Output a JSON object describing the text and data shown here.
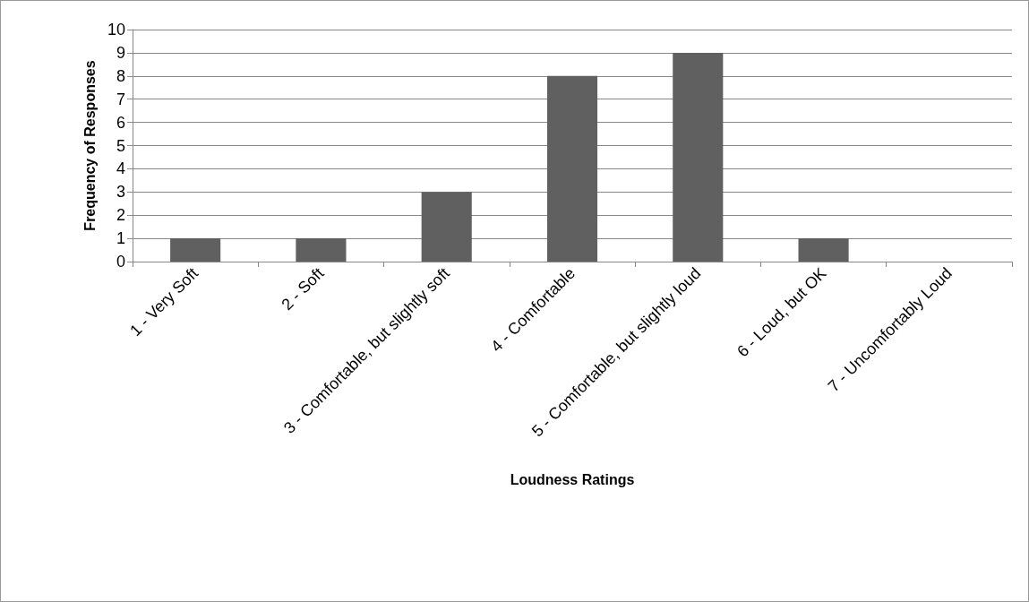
{
  "chart_data": {
    "type": "bar",
    "xlabel": "Loudness Ratings",
    "ylabel": "Frequency of Responses",
    "categories": [
      "1 - Very Soft",
      "2 - Soft",
      "3 - Comfortable, but slightly soft",
      "4 - Comfortable",
      "5 - Comfortable, but slightly loud",
      "6 - Loud, but OK",
      "7 - Uncomfortably Loud"
    ],
    "values": [
      1,
      1,
      3,
      8,
      9,
      1,
      0
    ],
    "color": "#606060",
    "ylim": [
      0,
      10
    ],
    "yticks": [
      0,
      1,
      2,
      3,
      4,
      5,
      6,
      7,
      8,
      9,
      10
    ],
    "grid": "y"
  }
}
